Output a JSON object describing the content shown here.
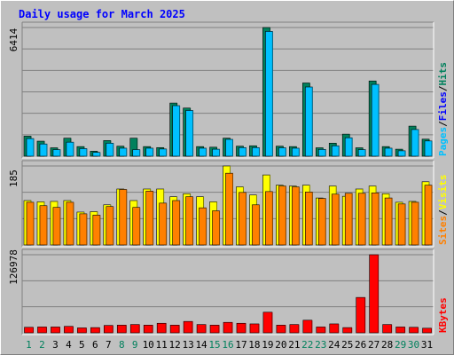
{
  "page": {
    "title": "Daily usage for March 2025"
  },
  "chart_data": {
    "type": "bar",
    "categories": [
      "1",
      "2",
      "3",
      "4",
      "5",
      "6",
      "7",
      "8",
      "9",
      "10",
      "11",
      "12",
      "13",
      "14",
      "15",
      "16",
      "17",
      "18",
      "19",
      "20",
      "21",
      "22",
      "23",
      "24",
      "25",
      "26",
      "27",
      "28",
      "29",
      "30",
      "31"
    ],
    "weekend_categories": [
      "1",
      "2",
      "8",
      "9",
      "15",
      "16",
      "22",
      "23",
      "29",
      "30"
    ],
    "colors": {
      "hits": "#00805c",
      "files": "#0000ff",
      "pages": "#00c0ff",
      "visits": "#ffff00",
      "sites": "#ff8000",
      "kbytes": "#ff0000",
      "weekday_label": "#000000",
      "weekend_label": "#00805c"
    },
    "panels": [
      {
        "id": "hits-files-pages",
        "ymax_label": "6414",
        "ymax": 6414,
        "legend": [
          {
            "text": "Pages",
            "color": "#00c0ff"
          },
          {
            "text": "Files",
            "color": "#0000ff"
          },
          {
            "text": "Hits",
            "color": "#00805c"
          }
        ],
        "series": [
          {
            "name": "Hits",
            "color": "#00805c",
            "values": [
              1000,
              750,
              420,
              900,
              480,
              250,
              780,
              500,
              900,
              480,
              430,
              2650,
              2400,
              480,
              450,
              900,
              500,
              520,
              6414,
              500,
              480,
              3650,
              420,
              650,
              1100,
              420,
              3750,
              480,
              350,
              1500,
              850
            ]
          },
          {
            "name": "Pages",
            "color": "#00c0ff",
            "values": [
              880,
              610,
              330,
              700,
              380,
              190,
              650,
              400,
              330,
              400,
              360,
              2520,
              2280,
              400,
              350,
              840,
              430,
              430,
              6220,
              420,
              400,
              3450,
              340,
              520,
              920,
              330,
              3580,
              400,
              270,
              1330,
              760
            ]
          }
        ]
      },
      {
        "id": "visits-sites",
        "ymax_label": "185",
        "ymax": 185,
        "legend": [
          {
            "text": "Sites",
            "color": "#ff8000"
          },
          {
            "text": "/",
            "color": "#000000"
          },
          {
            "text": "Visits",
            "color": "#ffff00"
          }
        ],
        "series": [
          {
            "name": "Visits",
            "color": "#ffff00",
            "values": [
              104,
              101,
              102,
              104,
              77,
              78,
              94,
              131,
              104,
              131,
              131,
              113,
              120,
              113,
              101,
              185,
              136,
              117,
              164,
              140,
              138,
              140,
              110,
              138,
              114,
              131,
              138,
              120,
              100,
              102,
              148
            ]
          },
          {
            "name": "Sites",
            "color": "#ff8000",
            "values": [
              100,
              92,
              88,
              100,
              73,
              70,
              90,
              130,
              88,
              126,
              98,
              104,
              113,
              87,
              80,
              168,
              123,
              94,
              125,
              138,
              136,
              124,
              109,
              119,
              121,
              121,
              122,
              110,
              96,
              100,
              140
            ]
          }
        ]
      },
      {
        "id": "kbytes",
        "ymax_label": "126978",
        "ymax": 126978,
        "legend": [
          {
            "text": "KBytes",
            "color": "#ff0000"
          }
        ],
        "series": [
          {
            "name": "KBytes",
            "color": "#ff0000",
            "values": [
              9000,
              9500,
              9500,
              10500,
              8000,
              8500,
              12000,
              12500,
              13500,
              12500,
              15500,
              12500,
              18500,
              13500,
              12500,
              17000,
              15500,
              14500,
              33500,
              12500,
              13500,
              20500,
              9500,
              14500,
              8500,
              57500,
              126978,
              13500,
              9500,
              9000,
              7500
            ]
          }
        ]
      }
    ]
  }
}
